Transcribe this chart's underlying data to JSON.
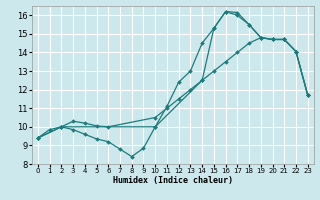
{
  "xlabel": "Humidex (Indice chaleur)",
  "bg_color": "#cce8ec",
  "grid_color": "#ffffff",
  "line_color": "#1e7b7b",
  "xlim": [
    -0.5,
    23.5
  ],
  "ylim": [
    8,
    16.5
  ],
  "xticks": [
    0,
    1,
    2,
    3,
    4,
    5,
    6,
    7,
    8,
    9,
    10,
    11,
    12,
    13,
    14,
    15,
    16,
    17,
    18,
    19,
    20,
    21,
    22,
    23
  ],
  "yticks": [
    8,
    9,
    10,
    11,
    12,
    13,
    14,
    15,
    16
  ],
  "line1_x": [
    0,
    1,
    2,
    3,
    4,
    5,
    6,
    7,
    8,
    9,
    10,
    11,
    12,
    13,
    14,
    15,
    16,
    17,
    18,
    19,
    20,
    21,
    22,
    23
  ],
  "line1_y": [
    9.4,
    9.85,
    10.0,
    9.85,
    9.6,
    9.35,
    9.2,
    8.8,
    8.4,
    8.85,
    10.0,
    11.1,
    12.4,
    13.0,
    14.5,
    15.3,
    16.2,
    16.15,
    15.5,
    14.8,
    14.7,
    14.7,
    14.05,
    11.7
  ],
  "line2_x": [
    0,
    2,
    3,
    4,
    5,
    6,
    10,
    11,
    12,
    13,
    14,
    15,
    16,
    17,
    18,
    19,
    20,
    21,
    22,
    23
  ],
  "line2_y": [
    9.4,
    10.0,
    10.3,
    10.2,
    10.05,
    10.0,
    10.5,
    11.0,
    11.5,
    12.0,
    12.5,
    13.0,
    13.5,
    14.0,
    14.5,
    14.8,
    14.7,
    14.7,
    14.05,
    11.7
  ],
  "line3_x": [
    0,
    2,
    10,
    14,
    15,
    16,
    17,
    18,
    19,
    20,
    21,
    22,
    23
  ],
  "line3_y": [
    9.4,
    10.0,
    10.0,
    12.5,
    15.3,
    16.2,
    16.0,
    15.5,
    14.8,
    14.7,
    14.7,
    14.05,
    11.7
  ]
}
